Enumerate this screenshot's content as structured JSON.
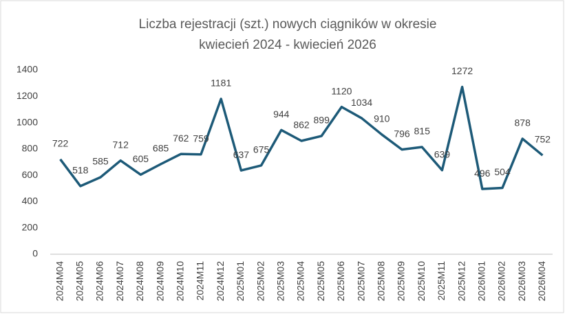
{
  "chart_data": {
    "type": "line",
    "title": [
      "Liczba rejestracji (szt.) nowych ciągników w okresie",
      "kwiecień 2024 - kwiecień 2026"
    ],
    "categories": [
      "2024M04",
      "2024M05",
      "2024M06",
      "2024M07",
      "2024M08",
      "2024M09",
      "2024M10",
      "2024M11",
      "2024M12",
      "2025M01",
      "2025M02",
      "2025M03",
      "2025M04",
      "2025M05",
      "2025M06",
      "2025M07",
      "2025M08",
      "2025M09",
      "2025M10",
      "2025M11",
      "2025M12",
      "2026M01",
      "2026M02",
      "2026M03",
      "2026M04"
    ],
    "values": [
      722,
      518,
      585,
      712,
      605,
      685,
      762,
      759,
      1181,
      637,
      675,
      944,
      862,
      899,
      1120,
      1034,
      910,
      796,
      815,
      639,
      1272,
      496,
      504,
      878,
      752
    ],
    "color": "#1d5a78",
    "ylim": [
      0,
      1400
    ],
    "yticks": [
      0,
      200,
      400,
      600,
      800,
      1000,
      1200,
      1400
    ],
    "grid": false
  }
}
